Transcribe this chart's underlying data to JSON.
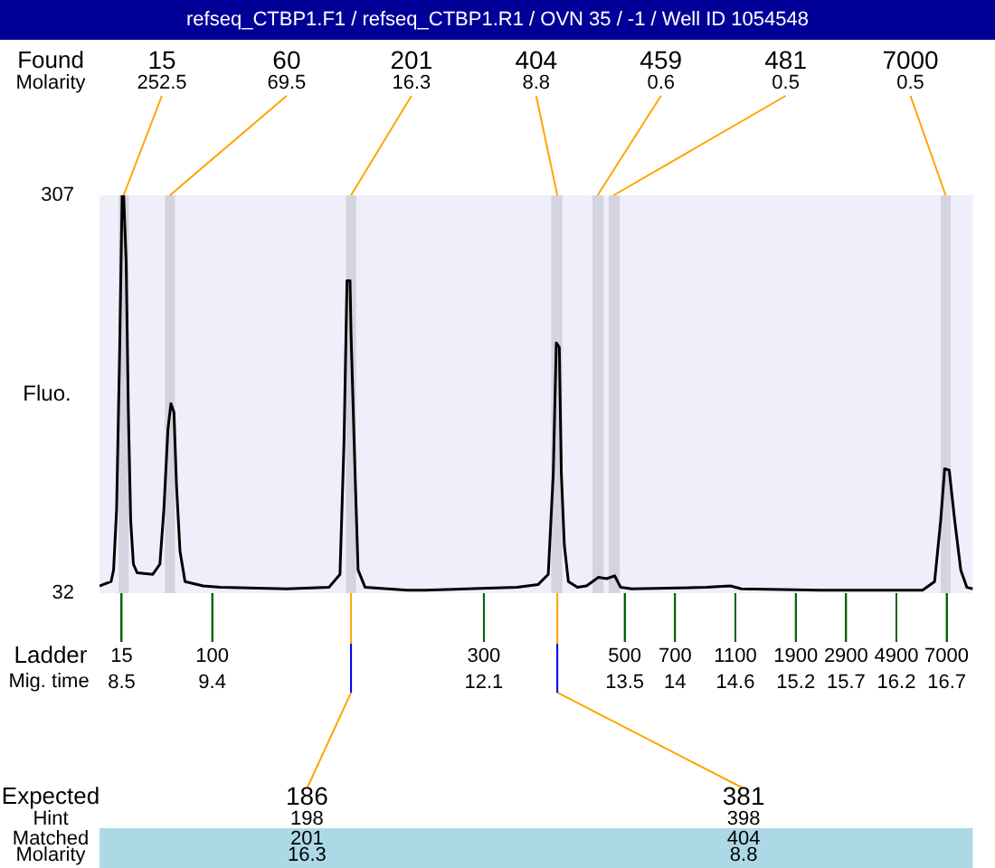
{
  "chart_data": {
    "type": "line",
    "title": "refseq_CTBP1.F1 / refseq_CTBP1.R1 / OVN 35 / -1 / Well ID 1054548",
    "ylabel": "Fluo.",
    "xlabel": "Mig. time",
    "x": [
      8.28,
      8.395,
      8.42,
      8.45,
      8.48,
      8.505,
      8.52,
      8.545,
      8.567,
      8.59,
      8.617,
      8.655,
      8.81,
      8.88,
      8.92,
      8.96,
      8.99,
      9.02,
      9.045,
      9.08,
      9.13,
      9.31,
      9.48,
      10.14,
      10.56,
      10.67,
      10.71,
      10.74,
      10.77,
      10.78,
      10.82,
      10.85,
      10.92,
      11.34,
      11.52,
      12.43,
      12.64,
      12.74,
      12.79,
      12.82,
      12.85,
      12.87,
      12.9,
      12.94,
      13.03,
      13.12,
      13.18,
      13.24,
      13.32,
      13.4,
      13.46,
      13.57,
      14.31,
      14.55,
      14.66,
      15.44,
      16.46,
      16.58,
      16.64,
      16.68,
      16.725,
      16.78,
      16.84,
      16.9,
      16.96
    ],
    "series": [
      {
        "color": "#000000",
        "values": [
          37,
          40,
          48,
          90,
          198,
          307,
          307,
          261,
          157,
          82,
          52,
          46,
          45,
          52,
          90,
          145,
          163,
          157,
          107,
          61,
          40,
          37,
          36,
          35,
          36,
          45,
          136,
          248,
          248,
          211,
          115,
          48,
          36,
          34,
          34,
          36,
          38,
          45,
          115,
          205,
          202,
          115,
          65,
          40,
          36,
          37,
          40,
          43,
          42,
          44,
          36,
          35,
          36,
          37,
          35,
          34,
          34,
          40,
          82,
          118,
          117,
          82,
          48,
          36,
          35
        ]
      }
    ],
    "xlim": [
      8.28,
      16.96
    ],
    "ylim": [
      32,
      307
    ],
    "yticks": [
      32,
      307
    ],
    "xticks": [
      8.5,
      9.4,
      12.1,
      13.5,
      14,
      14.6,
      15.2,
      15.7,
      16.2,
      16.7
    ],
    "bands": [
      {
        "axis": "x",
        "from": 8.47,
        "to": 8.57,
        "color": "#d4d4e0"
      },
      {
        "axis": "x",
        "from": 8.93,
        "to": 9.03,
        "color": "#d4d4e0"
      },
      {
        "axis": "x",
        "from": 10.73,
        "to": 10.83,
        "color": "#d4d4e0"
      },
      {
        "axis": "x",
        "from": 12.77,
        "to": 12.88,
        "color": "#d4d4e0"
      },
      {
        "axis": "x",
        "from": 13.18,
        "to": 13.29,
        "color": "#d4d4e0"
      },
      {
        "axis": "x",
        "from": 13.34,
        "to": 13.45,
        "color": "#d4d4e0"
      },
      {
        "axis": "x",
        "from": 16.64,
        "to": 16.74,
        "color": "#d4d4e0"
      }
    ],
    "annotations": [
      "Found\nMolarity",
      "Ladder",
      "Expected\nHint\nMatched\nMolarity",
      {
        "text": "15\n252.5",
        "x": 8.52,
        "y": 307
      },
      {
        "text": "60\n69.5",
        "x": 8.98,
        "y": 307
      },
      {
        "text": "201\n16.3",
        "x": 10.78,
        "y": 307
      },
      {
        "text": "404\n8.8",
        "x": 12.83,
        "y": 307
      },
      {
        "text": "459\n0.6",
        "x": 13.23,
        "y": 307
      },
      {
        "text": "481\n0.5",
        "x": 13.39,
        "y": 307
      },
      {
        "text": "7000\n0.5",
        "x": 16.69,
        "y": 307
      },
      {
        "text": "15",
        "x": 8.5,
        "y": 32
      },
      {
        "text": "100",
        "x": 9.4,
        "y": 32
      },
      {
        "text": "300",
        "x": 12.1,
        "y": 32
      },
      {
        "text": "500",
        "x": 13.5,
        "y": 32
      },
      {
        "text": "700",
        "x": 14,
        "y": 32
      },
      {
        "text": "1100",
        "x": 14.6,
        "y": 32
      },
      {
        "text": "1900",
        "x": 15.2,
        "y": 32
      },
      {
        "text": "2900",
        "x": 15.7,
        "y": 32
      },
      {
        "text": "4900",
        "x": 16.2,
        "y": 32
      },
      {
        "text": "7000",
        "x": 16.7,
        "y": 32
      },
      {
        "text": "186\n198\n201\n16.3",
        "x": 10.78,
        "y": 32
      },
      {
        "text": "381\n398\n404\n8.8",
        "x": 12.83,
        "y": 32
      }
    ],
    "grid": false,
    "legend": false,
    "marker": "none",
    "line_style": "solid"
  }
}
